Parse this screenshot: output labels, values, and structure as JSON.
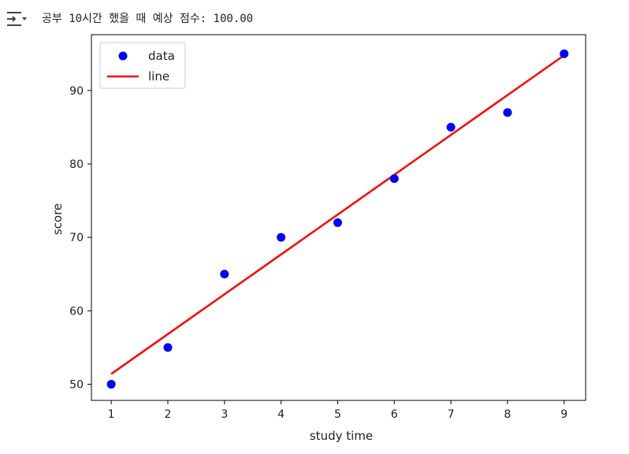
{
  "output": {
    "text": "공부 10시간 했을 때 예상 점수: 100.00"
  },
  "chart_data": {
    "type": "scatter",
    "title": "",
    "xlabel": "study time",
    "ylabel": "score",
    "xlim": [
      0.65,
      9.38
    ],
    "ylim": [
      47.8,
      97.6
    ],
    "xticks": [
      1,
      2,
      3,
      4,
      5,
      6,
      7,
      8,
      9
    ],
    "yticks": [
      50,
      60,
      70,
      80,
      90
    ],
    "grid": false,
    "legend_position": "upper-left",
    "series": [
      {
        "name": "data",
        "kind": "scatter",
        "color": "#0000ff",
        "x": [
          1,
          2,
          3,
          4,
          5,
          6,
          7,
          8,
          9
        ],
        "y": [
          50,
          55,
          65,
          70,
          72,
          78,
          85,
          87,
          95
        ]
      },
      {
        "name": "line",
        "kind": "line",
        "color": "#ff0000",
        "x": [
          1,
          9
        ],
        "y": [
          51.4,
          94.8
        ]
      }
    ]
  }
}
